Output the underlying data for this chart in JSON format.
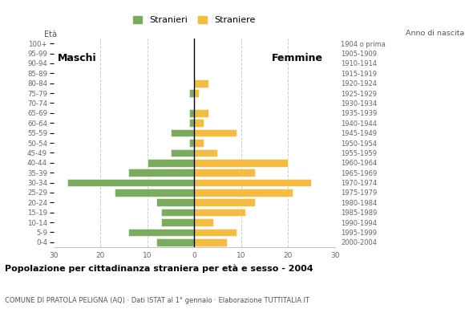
{
  "age_groups": [
    "0-4",
    "5-9",
    "10-14",
    "15-19",
    "20-24",
    "25-29",
    "30-34",
    "35-39",
    "40-44",
    "45-49",
    "50-54",
    "55-59",
    "60-64",
    "65-69",
    "70-74",
    "75-79",
    "80-84",
    "85-89",
    "90-94",
    "95-99",
    "100+"
  ],
  "birth_years": [
    "2000-2004",
    "1995-1999",
    "1990-1994",
    "1985-1989",
    "1980-1984",
    "1975-1979",
    "1970-1974",
    "1965-1969",
    "1960-1964",
    "1955-1959",
    "1950-1954",
    "1945-1949",
    "1940-1944",
    "1935-1939",
    "1930-1934",
    "1925-1929",
    "1920-1924",
    "1915-1919",
    "1910-1914",
    "1905-1909",
    "1904 o prima"
  ],
  "males": [
    8,
    14,
    7,
    7,
    8,
    17,
    27,
    14,
    10,
    5,
    1,
    5,
    1,
    1,
    0,
    1,
    0,
    0,
    0,
    0,
    0
  ],
  "females": [
    7,
    9,
    4,
    11,
    13,
    21,
    25,
    13,
    20,
    5,
    2,
    9,
    2,
    3,
    0,
    1,
    3,
    0,
    0,
    0,
    0
  ],
  "male_color": "#7aab5e",
  "female_color": "#f5bc42",
  "title": "Popolazione per cittadinanza straniera per età e sesso - 2004",
  "subtitle": "COMUNE DI PRATOLA PELIGNA (AQ) · Dati ISTAT al 1° gennaio · Elaborazione TUTTITALIA.IT",
  "legend_male": "Stranieri",
  "legend_female": "Straniere",
  "label_left": "Maschi",
  "label_right": "Femmine",
  "age_label": "Età",
  "birth_label": "Anno di nascita",
  "xlim": 30,
  "bg_color": "#ffffff",
  "grid_color": "#cccccc",
  "bar_edge_color": "#ffffff"
}
